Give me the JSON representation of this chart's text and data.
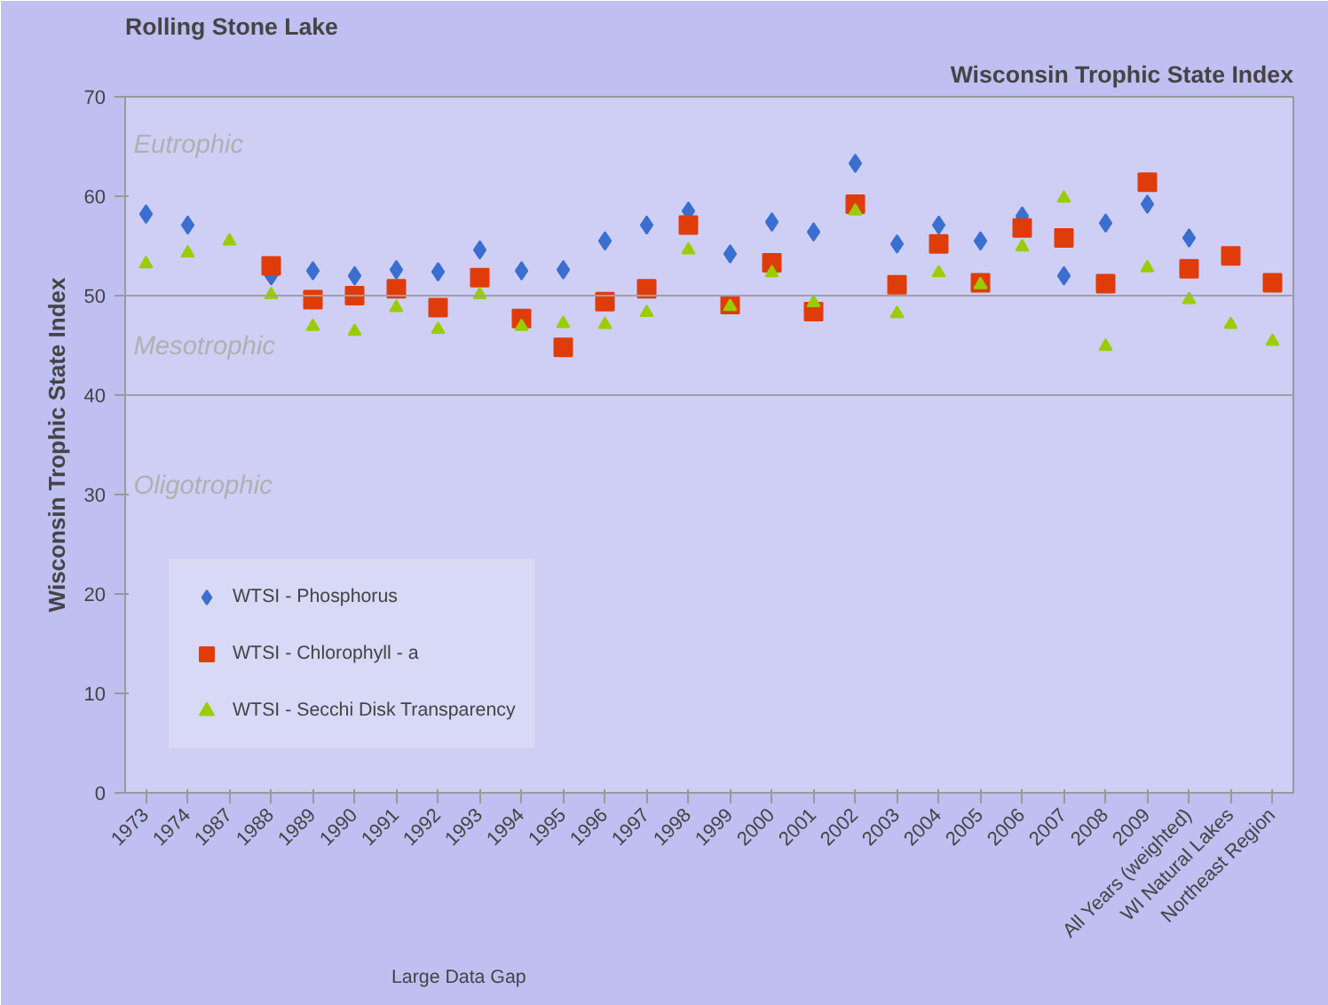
{
  "chart_data": {
    "type": "scatter",
    "title": "Rolling Stone Lake",
    "subtitle": "Wisconsin Trophic State Index",
    "ylabel": "Wisconsin Trophic State Index",
    "categories": [
      "1973",
      "1974",
      "1987",
      "1988",
      "1989",
      "1990",
      "1991",
      "1992",
      "1993",
      "1994",
      "1995",
      "1996",
      "1997",
      "1998",
      "1999",
      "2000",
      "2001",
      "2002",
      "2003",
      "2004",
      "2005",
      "2006",
      "2007",
      "2008",
      "2009",
      "All Years (weighted)",
      "WI Natural Lakes",
      "Northeast Region"
    ],
    "series": [
      {
        "name": "WTSI - Phosphorus",
        "color": "#3a6fd0",
        "marker": "diamond",
        "values": [
          58.2,
          57.1,
          null,
          52.0,
          52.5,
          52.0,
          52.6,
          52.4,
          54.6,
          52.5,
          52.6,
          55.5,
          57.1,
          58.5,
          54.2,
          57.4,
          56.4,
          63.3,
          55.2,
          57.1,
          55.5,
          58.0,
          52.0,
          57.3,
          59.2,
          55.8,
          null,
          null
        ]
      },
      {
        "name": "WTSI - Chlorophyll - a",
        "color": "#e03c0a",
        "marker": "square",
        "values": [
          null,
          null,
          null,
          53.0,
          49.6,
          50.0,
          50.7,
          48.8,
          51.8,
          47.7,
          44.8,
          49.4,
          50.7,
          57.1,
          49.1,
          53.3,
          48.4,
          59.2,
          51.1,
          55.2,
          51.3,
          56.8,
          55.8,
          51.2,
          61.4,
          52.7,
          54.0,
          51.3
        ]
      },
      {
        "name": "WTSI - Secchi Disk Transparency",
        "color": "#9acd00",
        "marker": "triangle",
        "values": [
          53.2,
          54.3,
          55.5,
          50.1,
          46.9,
          46.4,
          48.8,
          46.6,
          50.1,
          46.9,
          47.2,
          47.1,
          48.3,
          54.6,
          48.9,
          52.3,
          49.3,
          58.5,
          48.2,
          52.3,
          51.1,
          54.9,
          59.8,
          44.9,
          52.8,
          49.6,
          47.1,
          45.4
        ]
      }
    ],
    "ylim": [
      0,
      70
    ],
    "yticks": [
      0,
      10,
      20,
      30,
      40,
      50,
      60,
      70
    ],
    "grid": false,
    "legend": "bottom left",
    "ref_lines": [
      {
        "axis": "y",
        "value": 50
      },
      {
        "axis": "y",
        "value": 40
      }
    ],
    "annotations": [
      "Eutrophic",
      "Mesotrophic",
      "Oligotrophic",
      "Large Data Gap"
    ]
  }
}
